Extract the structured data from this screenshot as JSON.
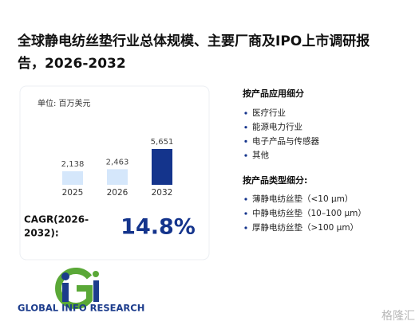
{
  "title": "全球静电纺丝垫行业总体规模、主要厂商及IPO上市调研报告，2026-2032",
  "unit": "单位: 百万美元",
  "chart_data": {
    "type": "bar",
    "categories": [
      "2025",
      "2026",
      "2032"
    ],
    "values": [
      2138,
      2463,
      5651
    ],
    "value_labels": [
      "2,138",
      "2,463",
      "5,651"
    ],
    "colors": [
      "#d5e7fb",
      "#d5e7fb",
      "#14348c"
    ]
  },
  "cagr": {
    "label": "CAGR(2026-2032):",
    "value": "14.8%"
  },
  "application": {
    "heading": "按产品应用细分",
    "items": [
      "医疗行业",
      "能源电力行业",
      "电子产品与传感器",
      "其他"
    ]
  },
  "type_segment": {
    "heading": "按产品类型细分:",
    "items": [
      "薄静电纺丝垫（<10 μm）",
      "中静电纺丝垫（10–100 μm）",
      "厚静电纺丝垫（>100 μm）"
    ]
  },
  "logo": "GLOBAL INFO RESEARCH",
  "watermark": "格隆汇"
}
